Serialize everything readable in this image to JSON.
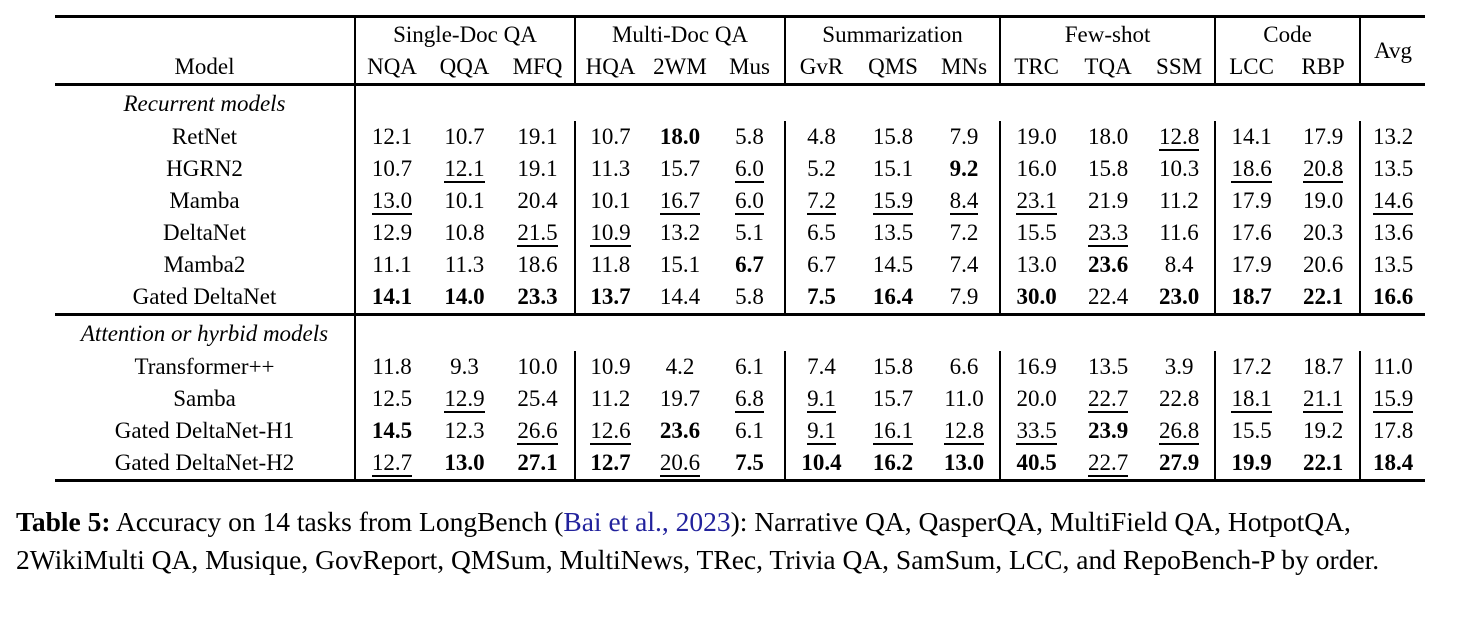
{
  "table": {
    "model_header": "Model",
    "groups": [
      {
        "label": "Single-Doc QA",
        "cols": [
          "NQA",
          "QQA",
          "MFQ"
        ]
      },
      {
        "label": "Multi-Doc QA",
        "cols": [
          "HQA",
          "2WM",
          "Mus"
        ]
      },
      {
        "label": "Summarization",
        "cols": [
          "GvR",
          "QMS",
          "MNs"
        ]
      },
      {
        "label": "Few-shot",
        "cols": [
          "TRC",
          "TQA",
          "SSM"
        ]
      },
      {
        "label": "Code",
        "cols": [
          "LCC",
          "RBP"
        ]
      },
      {
        "label": "Avg",
        "cols": []
      }
    ],
    "sections": [
      {
        "title": "Recurrent models",
        "rows": [
          {
            "model": "RetNet",
            "bold": false,
            "cells": [
              [
                "12.1",
                ""
              ],
              [
                "10.7",
                ""
              ],
              [
                "19.1",
                ""
              ],
              [
                "10.7",
                ""
              ],
              [
                "18.0",
                "b"
              ],
              [
                "5.8",
                ""
              ],
              [
                "4.8",
                ""
              ],
              [
                "15.8",
                ""
              ],
              [
                "7.9",
                ""
              ],
              [
                "19.0",
                ""
              ],
              [
                "18.0",
                ""
              ],
              [
                "12.8",
                "u"
              ],
              [
                "14.1",
                ""
              ],
              [
                "17.9",
                ""
              ],
              [
                "13.2",
                ""
              ]
            ]
          },
          {
            "model": "HGRN2",
            "bold": false,
            "cells": [
              [
                "10.7",
                ""
              ],
              [
                "12.1",
                "u"
              ],
              [
                "19.1",
                ""
              ],
              [
                "11.3",
                ""
              ],
              [
                "15.7",
                ""
              ],
              [
                "6.0",
                "u"
              ],
              [
                "5.2",
                ""
              ],
              [
                "15.1",
                ""
              ],
              [
                "9.2",
                "b"
              ],
              [
                "16.0",
                ""
              ],
              [
                "15.8",
                ""
              ],
              [
                "10.3",
                ""
              ],
              [
                "18.6",
                "u"
              ],
              [
                "20.8",
                "u"
              ],
              [
                "13.5",
                ""
              ]
            ]
          },
          {
            "model": "Mamba",
            "bold": false,
            "cells": [
              [
                "13.0",
                "u"
              ],
              [
                "10.1",
                ""
              ],
              [
                "20.4",
                ""
              ],
              [
                "10.1",
                ""
              ],
              [
                "16.7",
                "u"
              ],
              [
                "6.0",
                "u"
              ],
              [
                "7.2",
                "u"
              ],
              [
                "15.9",
                "u"
              ],
              [
                "8.4",
                "u"
              ],
              [
                "23.1",
                "u"
              ],
              [
                "21.9",
                ""
              ],
              [
                "11.2",
                ""
              ],
              [
                "17.9",
                ""
              ],
              [
                "19.0",
                ""
              ],
              [
                "14.6",
                "u"
              ]
            ]
          },
          {
            "model": "DeltaNet",
            "bold": false,
            "cells": [
              [
                "12.9",
                ""
              ],
              [
                "10.8",
                ""
              ],
              [
                "21.5",
                "u"
              ],
              [
                "10.9",
                "u"
              ],
              [
                "13.2",
                ""
              ],
              [
                "5.1",
                ""
              ],
              [
                "6.5",
                ""
              ],
              [
                "13.5",
                ""
              ],
              [
                "7.2",
                ""
              ],
              [
                "15.5",
                ""
              ],
              [
                "23.3",
                "u"
              ],
              [
                "11.6",
                ""
              ],
              [
                "17.6",
                ""
              ],
              [
                "20.3",
                ""
              ],
              [
                "13.6",
                ""
              ]
            ]
          },
          {
            "model": "Mamba2",
            "bold": false,
            "cells": [
              [
                "11.1",
                ""
              ],
              [
                "11.3",
                ""
              ],
              [
                "18.6",
                ""
              ],
              [
                "11.8",
                ""
              ],
              [
                "15.1",
                ""
              ],
              [
                "6.7",
                "b"
              ],
              [
                "6.7",
                ""
              ],
              [
                "14.5",
                ""
              ],
              [
                "7.4",
                ""
              ],
              [
                "13.0",
                ""
              ],
              [
                "23.6",
                "b"
              ],
              [
                "8.4",
                ""
              ],
              [
                "17.9",
                ""
              ],
              [
                "20.6",
                ""
              ],
              [
                "13.5",
                ""
              ]
            ]
          },
          {
            "model": "Gated DeltaNet",
            "bold": true,
            "cells": [
              [
                "14.1",
                "b"
              ],
              [
                "14.0",
                "b"
              ],
              [
                "23.3",
                "b"
              ],
              [
                "13.7",
                "b"
              ],
              [
                "14.4",
                ""
              ],
              [
                "5.8",
                ""
              ],
              [
                "7.5",
                "b"
              ],
              [
                "16.4",
                "b"
              ],
              [
                "7.9",
                ""
              ],
              [
                "30.0",
                "b"
              ],
              [
                "22.4",
                ""
              ],
              [
                "23.0",
                "b"
              ],
              [
                "18.7",
                "b"
              ],
              [
                "22.1",
                "b"
              ],
              [
                "16.6",
                "b"
              ]
            ]
          }
        ]
      },
      {
        "title": "Attention or hyrbid models",
        "rows": [
          {
            "model": "Transformer++",
            "bold": false,
            "cells": [
              [
                "11.8",
                ""
              ],
              [
                "9.3",
                ""
              ],
              [
                "10.0",
                ""
              ],
              [
                "10.9",
                ""
              ],
              [
                "4.2",
                ""
              ],
              [
                "6.1",
                ""
              ],
              [
                "7.4",
                ""
              ],
              [
                "15.8",
                ""
              ],
              [
                "6.6",
                ""
              ],
              [
                "16.9",
                ""
              ],
              [
                "13.5",
                ""
              ],
              [
                "3.9",
                ""
              ],
              [
                "17.2",
                ""
              ],
              [
                "18.7",
                ""
              ],
              [
                "11.0",
                ""
              ]
            ]
          },
          {
            "model": "Samba",
            "bold": false,
            "cells": [
              [
                "12.5",
                ""
              ],
              [
                "12.9",
                "u"
              ],
              [
                "25.4",
                ""
              ],
              [
                "11.2",
                ""
              ],
              [
                "19.7",
                ""
              ],
              [
                "6.8",
                "u"
              ],
              [
                "9.1",
                "u"
              ],
              [
                "15.7",
                ""
              ],
              [
                "11.0",
                ""
              ],
              [
                "20.0",
                ""
              ],
              [
                "22.7",
                "u"
              ],
              [
                "22.8",
                ""
              ],
              [
                "18.1",
                "u"
              ],
              [
                "21.1",
                "u"
              ],
              [
                "15.9",
                "u"
              ]
            ]
          },
          {
            "model": "Gated DeltaNet-H1",
            "bold": true,
            "cells": [
              [
                "14.5",
                "b"
              ],
              [
                "12.3",
                ""
              ],
              [
                "26.6",
                "u"
              ],
              [
                "12.6",
                "u"
              ],
              [
                "23.6",
                "b"
              ],
              [
                "6.1",
                ""
              ],
              [
                "9.1",
                "u"
              ],
              [
                "16.1",
                "u"
              ],
              [
                "12.8",
                "u"
              ],
              [
                "33.5",
                "u"
              ],
              [
                "23.9",
                "b"
              ],
              [
                "26.8",
                "u"
              ],
              [
                "15.5",
                ""
              ],
              [
                "19.2",
                ""
              ],
              [
                "17.8",
                ""
              ]
            ]
          },
          {
            "model": "Gated DeltaNet-H2",
            "bold": true,
            "cells": [
              [
                "12.7",
                "u"
              ],
              [
                "13.0",
                "b"
              ],
              [
                "27.1",
                "b"
              ],
              [
                "12.7",
                "b"
              ],
              [
                "20.6",
                "u"
              ],
              [
                "7.5",
                "b"
              ],
              [
                "10.4",
                "b"
              ],
              [
                "16.2",
                "b"
              ],
              [
                "13.0",
                "b"
              ],
              [
                "40.5",
                "b"
              ],
              [
                "22.7",
                "u"
              ],
              [
                "27.9",
                "b"
              ],
              [
                "19.9",
                "b"
              ],
              [
                "22.1",
                "b"
              ],
              [
                "18.4",
                "b"
              ]
            ]
          }
        ]
      }
    ]
  },
  "caption": {
    "label": "Table 5:",
    "before_link": " Accuracy on 14 tasks from LongBench (",
    "link": "Bai et al., 2023",
    "after_link": "): Narrative QA, QasperQA, MultiField QA, HotpotQA, 2WikiMulti QA, Musique, GovReport, QMSum, MultiNews, TRec, Trivia QA, SamSum, LCC, and RepoBench-P by order.",
    "link_color": "#21219c"
  }
}
